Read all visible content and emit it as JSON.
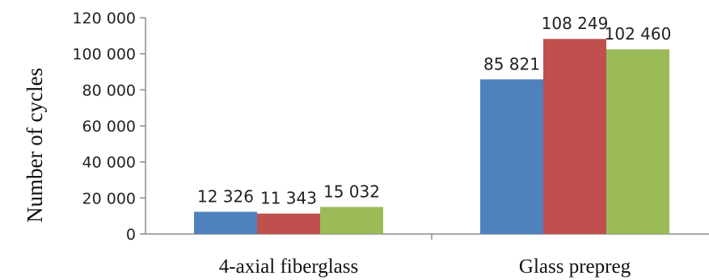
{
  "chart_data": {
    "type": "bar",
    "categories": [
      "4-axial fiberglass",
      "Glass prepreg"
    ],
    "series": [
      {
        "values": [
          12326,
          85821
        ],
        "labels": [
          "12 326",
          "85 821"
        ],
        "color": "#4F81BD"
      },
      {
        "values": [
          11343,
          108249
        ],
        "labels": [
          "11 343",
          "108 249"
        ],
        "color": "#C0504D"
      },
      {
        "values": [
          15032,
          102460
        ],
        "labels": [
          "15 032",
          "102 460"
        ],
        "color": "#9BBB59"
      }
    ],
    "ylabel": "Number of cycles",
    "ylim": [
      0,
      120000
    ],
    "yticks": [
      0,
      20000,
      40000,
      60000,
      80000,
      100000,
      120000
    ],
    "ytick_labels": [
      "0",
      "20 000",
      "40 000",
      "60 000",
      "80 000",
      "100 000",
      "120 000"
    ],
    "grid": false,
    "legend": "none"
  }
}
